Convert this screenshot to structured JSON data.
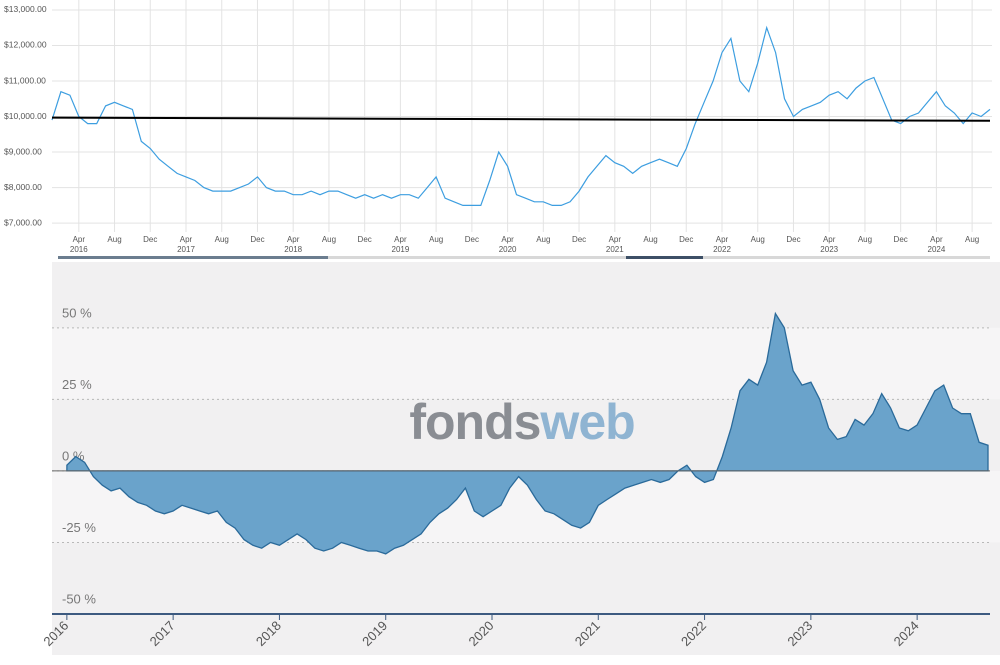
{
  "chart_data": [
    {
      "type": "line",
      "x": [
        "2016-01",
        "2016-02",
        "2016-03",
        "2016-04",
        "2016-05",
        "2016-06",
        "2016-07",
        "2016-08",
        "2016-09",
        "2016-10",
        "2016-11",
        "2016-12",
        "2017-01",
        "2017-02",
        "2017-03",
        "2017-04",
        "2017-05",
        "2017-06",
        "2017-07",
        "2017-08",
        "2017-09",
        "2017-10",
        "2017-11",
        "2017-12",
        "2018-01",
        "2018-02",
        "2018-03",
        "2018-04",
        "2018-05",
        "2018-06",
        "2018-07",
        "2018-08",
        "2018-09",
        "2018-10",
        "2018-11",
        "2018-12",
        "2019-01",
        "2019-02",
        "2019-03",
        "2019-04",
        "2019-05",
        "2019-06",
        "2019-07",
        "2019-08",
        "2019-09",
        "2019-10",
        "2019-11",
        "2019-12",
        "2020-01",
        "2020-02",
        "2020-03",
        "2020-04",
        "2020-05",
        "2020-06",
        "2020-07",
        "2020-08",
        "2020-09",
        "2020-10",
        "2020-11",
        "2020-12",
        "2021-01",
        "2021-02",
        "2021-03",
        "2021-04",
        "2021-05",
        "2021-06",
        "2021-07",
        "2021-08",
        "2021-09",
        "2021-10",
        "2021-11",
        "2021-12",
        "2022-01",
        "2022-02",
        "2022-03",
        "2022-04",
        "2022-05",
        "2022-06",
        "2022-07",
        "2022-08",
        "2022-09",
        "2022-10",
        "2022-11",
        "2022-12",
        "2023-01",
        "2023-02",
        "2023-03",
        "2023-04",
        "2023-05",
        "2023-06",
        "2023-07",
        "2023-08",
        "2023-09",
        "2023-10",
        "2023-11",
        "2023-12",
        "2024-01",
        "2024-02",
        "2024-03",
        "2024-04",
        "2024-05",
        "2024-06",
        "2024-07",
        "2024-08",
        "2024-09",
        "2024-10"
      ],
      "series": [
        {
          "color": "#3d9ee0",
          "values": [
            9900,
            10700,
            10600,
            10000,
            9800,
            9800,
            10300,
            10400,
            10300,
            10200,
            9300,
            9100,
            8800,
            8600,
            8400,
            8300,
            8200,
            8000,
            7900,
            7900,
            7900,
            8000,
            8100,
            8300,
            8000,
            7900,
            7900,
            7800,
            7800,
            7900,
            7800,
            7900,
            7900,
            7800,
            7700,
            7800,
            7700,
            7800,
            7700,
            7800,
            7800,
            7700,
            8000,
            8300,
            7700,
            7600,
            7500,
            7500,
            7500,
            8200,
            9000,
            8600,
            7800,
            7700,
            7600,
            7600,
            7500,
            7500,
            7600,
            7900,
            8300,
            8600,
            8900,
            8700,
            8600,
            8400,
            8600,
            8700,
            8800,
            8700,
            8600,
            9100,
            9800,
            10400,
            11000,
            11800,
            12200,
            11000,
            10700,
            11500,
            12500,
            11800,
            10500,
            10000,
            10200,
            10300,
            10400,
            10600,
            10700,
            10500,
            10800,
            11000,
            11100,
            10500,
            9900,
            9800,
            10000,
            10100,
            10400,
            10700,
            10300,
            10100,
            9800,
            10100,
            10000,
            10200
          ]
        }
      ],
      "trend": {
        "x": [
          "2016-01",
          "2024-10"
        ],
        "values": [
          9970,
          9880
        ],
        "color": "#000000"
      },
      "xlim": [
        "2016-01",
        "2024-10"
      ],
      "xticks": [
        {
          "value": "2016-04",
          "label": "Apr"
        },
        {
          "value": "2016-08",
          "label": "Aug"
        },
        {
          "value": "2016-12",
          "label": "Dec"
        },
        {
          "value": "2017-04",
          "label": "Apr"
        },
        {
          "value": "2017-08",
          "label": "Aug"
        },
        {
          "value": "2017-12",
          "label": "Dec"
        },
        {
          "value": "2018-04",
          "label": "Apr"
        },
        {
          "value": "2018-08",
          "label": "Aug"
        },
        {
          "value": "2018-12",
          "label": "Dec"
        },
        {
          "value": "2019-04",
          "label": "Apr"
        },
        {
          "value": "2019-08",
          "label": "Aug"
        },
        {
          "value": "2019-12",
          "label": "Dec"
        },
        {
          "value": "2020-04",
          "label": "Apr"
        },
        {
          "value": "2020-08",
          "label": "Aug"
        },
        {
          "value": "2020-12",
          "label": "Dec"
        },
        {
          "value": "2021-04",
          "label": "Apr"
        },
        {
          "value": "2021-08",
          "label": "Aug"
        },
        {
          "value": "2021-12",
          "label": "Dec"
        },
        {
          "value": "2022-04",
          "label": "Apr"
        },
        {
          "value": "2022-08",
          "label": "Aug"
        },
        {
          "value": "2022-12",
          "label": "Dec"
        },
        {
          "value": "2023-04",
          "label": "Apr"
        },
        {
          "value": "2023-08",
          "label": "Aug"
        },
        {
          "value": "2023-12",
          "label": "Dec"
        },
        {
          "value": "2024-04",
          "label": "Apr"
        },
        {
          "value": "2024-08",
          "label": "Aug"
        }
      ],
      "xtick_years": [
        {
          "value": "2016-04",
          "label": "2016"
        },
        {
          "value": "2017-04",
          "label": "2017"
        },
        {
          "value": "2018-04",
          "label": "2018"
        },
        {
          "value": "2019-04",
          "label": "2019"
        },
        {
          "value": "2020-04",
          "label": "2020"
        },
        {
          "value": "2021-04",
          "label": "2021"
        },
        {
          "value": "2022-04",
          "label": "2022"
        },
        {
          "value": "2023-04",
          "label": "2023"
        },
        {
          "value": "2024-04",
          "label": "2024"
        }
      ],
      "ylim": [
        6750,
        13280
      ],
      "yticks": [
        {
          "value": 7000,
          "label": "$7,000.00"
        },
        {
          "value": 8000,
          "label": "$8,000.00"
        },
        {
          "value": 9000,
          "label": "$9,000.00"
        },
        {
          "value": 10000,
          "label": "$10,000.00"
        },
        {
          "value": 11000,
          "label": "$11,000.00"
        },
        {
          "value": 12000,
          "label": "$12,000.00"
        },
        {
          "value": 13000,
          "label": "$13,000.00"
        }
      ],
      "grid": true
    },
    {
      "type": "area",
      "x": [
        "2016-01",
        "2016-02",
        "2016-03",
        "2016-04",
        "2016-05",
        "2016-06",
        "2016-07",
        "2016-08",
        "2016-09",
        "2016-10",
        "2016-11",
        "2016-12",
        "2017-01",
        "2017-02",
        "2017-03",
        "2017-04",
        "2017-05",
        "2017-06",
        "2017-07",
        "2017-08",
        "2017-09",
        "2017-10",
        "2017-11",
        "2017-12",
        "2018-01",
        "2018-02",
        "2018-03",
        "2018-04",
        "2018-05",
        "2018-06",
        "2018-07",
        "2018-08",
        "2018-09",
        "2018-10",
        "2018-11",
        "2018-12",
        "2019-01",
        "2019-02",
        "2019-03",
        "2019-04",
        "2019-05",
        "2019-06",
        "2019-07",
        "2019-08",
        "2019-09",
        "2019-10",
        "2019-11",
        "2019-12",
        "2020-01",
        "2020-02",
        "2020-03",
        "2020-04",
        "2020-05",
        "2020-06",
        "2020-07",
        "2020-08",
        "2020-09",
        "2020-10",
        "2020-11",
        "2020-12",
        "2021-01",
        "2021-02",
        "2021-03",
        "2021-04",
        "2021-05",
        "2021-06",
        "2021-07",
        "2021-08",
        "2021-09",
        "2021-10",
        "2021-11",
        "2021-12",
        "2022-01",
        "2022-02",
        "2022-03",
        "2022-04",
        "2022-05",
        "2022-06",
        "2022-07",
        "2022-08",
        "2022-09",
        "2022-10",
        "2022-11",
        "2022-12",
        "2023-01",
        "2023-02",
        "2023-03",
        "2023-04",
        "2023-05",
        "2023-06",
        "2023-07",
        "2023-08",
        "2023-09",
        "2023-10",
        "2023-11",
        "2023-12",
        "2024-01",
        "2024-02",
        "2024-03",
        "2024-04",
        "2024-05",
        "2024-06",
        "2024-07",
        "2024-08",
        "2024-09"
      ],
      "series": [
        {
          "color": "#6aa3cb",
          "values": [
            2,
            5,
            3,
            -2,
            -5,
            -7,
            -6,
            -9,
            -11,
            -12,
            -14,
            -15,
            -14,
            -12,
            -13,
            -14,
            -15,
            -14,
            -18,
            -20,
            -24,
            -26,
            -27,
            -25,
            -26,
            -24,
            -22,
            -24,
            -27,
            -28,
            -27,
            -25,
            -26,
            -27,
            -28,
            -28,
            -29,
            -27,
            -26,
            -24,
            -22,
            -18,
            -15,
            -13,
            -10,
            -6,
            -14,
            -16,
            -14,
            -12,
            -6,
            -2,
            -5,
            -10,
            -14,
            -15,
            -17,
            -19,
            -20,
            -18,
            -12,
            -10,
            -8,
            -6,
            -5,
            -4,
            -3,
            -4,
            -3,
            0,
            2,
            -2,
            -4,
            -3,
            5,
            15,
            28,
            32,
            30,
            38,
            55,
            50,
            35,
            30,
            31,
            25,
            15,
            11,
            12,
            18,
            16,
            20,
            27,
            22,
            15,
            14,
            16,
            22,
            28,
            30,
            22,
            20,
            20,
            10,
            9
          ]
        }
      ],
      "watermark": [
        "fonds",
        "web"
      ],
      "xlim": [
        "2015-12",
        "2024-09"
      ],
      "xticks": [
        {
          "value": "2016-01",
          "label": "2016"
        },
        {
          "value": "2017-01",
          "label": "2017"
        },
        {
          "value": "2018-01",
          "label": "2018"
        },
        {
          "value": "2019-01",
          "label": "2019"
        },
        {
          "value": "2020-01",
          "label": "2020"
        },
        {
          "value": "2021-01",
          "label": "2021"
        },
        {
          "value": "2022-01",
          "label": "2022"
        },
        {
          "value": "2023-01",
          "label": "2023"
        },
        {
          "value": "2024-01",
          "label": "2024"
        }
      ],
      "ylim": [
        -50,
        73
      ],
      "yticks": [
        {
          "value": -50,
          "label": "-50 %"
        },
        {
          "value": -25,
          "label": "-25 %"
        },
        {
          "value": 0,
          "label": "0 %"
        },
        {
          "value": 25,
          "label": "25 %"
        },
        {
          "value": 50,
          "label": "50 %"
        }
      ],
      "grid": true
    }
  ]
}
